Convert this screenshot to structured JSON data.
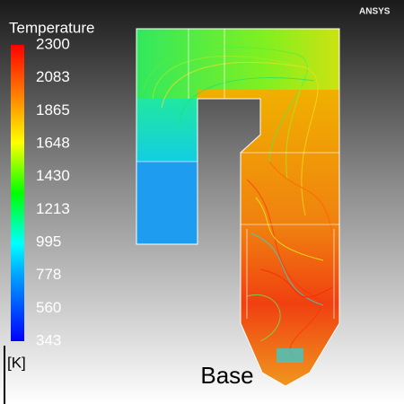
{
  "legend": {
    "title": "Temperature",
    "ticks": [
      2300,
      2083,
      1865,
      1648,
      1430,
      1213,
      995,
      778,
      560,
      343
    ],
    "unit": "[K]"
  },
  "caption": "Base",
  "logo": "ANSYS"
}
